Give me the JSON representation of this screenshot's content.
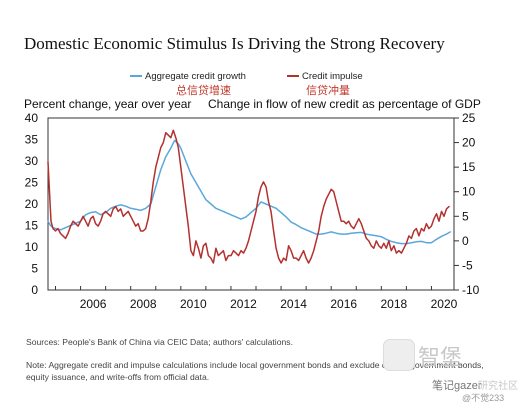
{
  "chart_data": {
    "type": "line",
    "title": "Domestic Economic Stimulus Is Driving the Strong Recovery",
    "legend": [
      {
        "name": "Aggregate credit growth",
        "color": "#5ba7dc"
      },
      {
        "name": "Credit impulse",
        "color": "#b3312f"
      }
    ],
    "legend_cn": [
      "总信贷增速",
      "信贷冲量"
    ],
    "left_axis": {
      "label": "Percent change, year over year",
      "ylim": [
        0,
        40
      ],
      "ticks": [
        0,
        5,
        10,
        15,
        20,
        25,
        30,
        35,
        40
      ]
    },
    "right_axis": {
      "label": "Change in flow of new credit as percentage of GDP",
      "ylim": [
        -10,
        25
      ],
      "ticks": [
        -10,
        -5,
        0,
        5,
        10,
        15,
        20,
        25
      ]
    },
    "x_ticks": [
      "2006",
      "2008",
      "2010",
      "2012",
      "2014",
      "2016",
      "2018",
      "2020"
    ],
    "xlim": [
      2004.7,
      2020.9
    ],
    "series": [
      {
        "name": "Aggregate credit growth",
        "axis": "left",
        "color": "#5ba7dc",
        "points": [
          [
            2004.7,
            16.0
          ],
          [
            2004.8,
            15.0
          ],
          [
            2004.9,
            14.5
          ],
          [
            2005.0,
            14.3
          ],
          [
            2005.2,
            14.0
          ],
          [
            2005.4,
            14.5
          ],
          [
            2005.6,
            15.0
          ],
          [
            2005.8,
            15.5
          ],
          [
            2006.0,
            16.0
          ],
          [
            2006.2,
            17.5
          ],
          [
            2006.4,
            18.0
          ],
          [
            2006.6,
            18.2
          ],
          [
            2006.8,
            17.5
          ],
          [
            2007.0,
            18.0
          ],
          [
            2007.2,
            19.0
          ],
          [
            2007.4,
            19.5
          ],
          [
            2007.6,
            19.8
          ],
          [
            2007.8,
            19.5
          ],
          [
            2008.0,
            19.0
          ],
          [
            2008.2,
            18.8
          ],
          [
            2008.4,
            18.5
          ],
          [
            2008.6,
            19.0
          ],
          [
            2008.8,
            20.0
          ],
          [
            2009.0,
            24.0
          ],
          [
            2009.2,
            28.0
          ],
          [
            2009.4,
            31.0
          ],
          [
            2009.6,
            33.0
          ],
          [
            2009.75,
            34.8
          ],
          [
            2009.9,
            34.0
          ],
          [
            2010.0,
            33.0
          ],
          [
            2010.2,
            30.0
          ],
          [
            2010.4,
            27.0
          ],
          [
            2010.6,
            25.0
          ],
          [
            2010.8,
            23.0
          ],
          [
            2011.0,
            21.0
          ],
          [
            2011.2,
            20.0
          ],
          [
            2011.4,
            19.0
          ],
          [
            2011.6,
            18.5
          ],
          [
            2011.8,
            18.0
          ],
          [
            2012.0,
            17.5
          ],
          [
            2012.2,
            17.0
          ],
          [
            2012.4,
            16.5
          ],
          [
            2012.6,
            17.0
          ],
          [
            2012.8,
            18.0
          ],
          [
            2013.0,
            19.0
          ],
          [
            2013.2,
            20.5
          ],
          [
            2013.4,
            20.0
          ],
          [
            2013.6,
            19.5
          ],
          [
            2013.8,
            19.0
          ],
          [
            2014.0,
            18.0
          ],
          [
            2014.2,
            17.0
          ],
          [
            2014.4,
            15.8
          ],
          [
            2014.6,
            15.2
          ],
          [
            2014.8,
            14.5
          ],
          [
            2015.0,
            14.0
          ],
          [
            2015.2,
            13.5
          ],
          [
            2015.4,
            13.0
          ],
          [
            2015.6,
            13.0
          ],
          [
            2015.8,
            13.2
          ],
          [
            2016.0,
            13.5
          ],
          [
            2016.2,
            13.2
          ],
          [
            2016.4,
            13.0
          ],
          [
            2016.6,
            13.0
          ],
          [
            2016.8,
            13.2
          ],
          [
            2017.0,
            13.3
          ],
          [
            2017.2,
            13.4
          ],
          [
            2017.4,
            13.0
          ],
          [
            2017.6,
            12.8
          ],
          [
            2017.8,
            12.6
          ],
          [
            2018.0,
            12.4
          ],
          [
            2018.2,
            11.8
          ],
          [
            2018.4,
            11.3
          ],
          [
            2018.6,
            11.0
          ],
          [
            2018.8,
            10.8
          ],
          [
            2019.0,
            10.8
          ],
          [
            2019.2,
            11.0
          ],
          [
            2019.4,
            11.2
          ],
          [
            2019.6,
            11.3
          ],
          [
            2019.8,
            11.0
          ],
          [
            2020.0,
            11.0
          ],
          [
            2020.2,
            11.8
          ],
          [
            2020.4,
            12.5
          ],
          [
            2020.6,
            13.0
          ],
          [
            2020.75,
            13.5
          ]
        ]
      },
      {
        "name": "Credit impulse",
        "axis": "right",
        "color": "#b3312f",
        "points": [
          [
            2004.7,
            16.0
          ],
          [
            2004.76,
            10.0
          ],
          [
            2004.82,
            4.0
          ],
          [
            2004.9,
            2.5
          ],
          [
            2005.0,
            2.0
          ],
          [
            2005.1,
            2.5
          ],
          [
            2005.2,
            1.5
          ],
          [
            2005.3,
            1.0
          ],
          [
            2005.4,
            0.5
          ],
          [
            2005.5,
            1.5
          ],
          [
            2005.6,
            3.0
          ],
          [
            2005.7,
            4.0
          ],
          [
            2005.8,
            3.5
          ],
          [
            2005.9,
            3.0
          ],
          [
            2006.0,
            4.0
          ],
          [
            2006.1,
            5.0
          ],
          [
            2006.2,
            4.0
          ],
          [
            2006.3,
            3.0
          ],
          [
            2006.4,
            4.5
          ],
          [
            2006.5,
            5.0
          ],
          [
            2006.6,
            3.5
          ],
          [
            2006.7,
            3.0
          ],
          [
            2006.8,
            4.0
          ],
          [
            2006.9,
            5.5
          ],
          [
            2007.0,
            6.0
          ],
          [
            2007.1,
            5.5
          ],
          [
            2007.2,
            5.0
          ],
          [
            2007.3,
            6.5
          ],
          [
            2007.4,
            7.0
          ],
          [
            2007.5,
            6.0
          ],
          [
            2007.6,
            6.5
          ],
          [
            2007.7,
            5.0
          ],
          [
            2007.8,
            5.5
          ],
          [
            2007.9,
            6.0
          ],
          [
            2008.0,
            5.0
          ],
          [
            2008.1,
            4.0
          ],
          [
            2008.2,
            3.0
          ],
          [
            2008.3,
            3.5
          ],
          [
            2008.4,
            2.0
          ],
          [
            2008.5,
            2.0
          ],
          [
            2008.6,
            2.5
          ],
          [
            2008.7,
            4.5
          ],
          [
            2008.8,
            8.0
          ],
          [
            2008.9,
            12.0
          ],
          [
            2009.0,
            15.0
          ],
          [
            2009.1,
            17.0
          ],
          [
            2009.2,
            19.0
          ],
          [
            2009.3,
            20.0
          ],
          [
            2009.4,
            22.0
          ],
          [
            2009.5,
            21.5
          ],
          [
            2009.6,
            21.0
          ],
          [
            2009.7,
            22.5
          ],
          [
            2009.8,
            21.0
          ],
          [
            2009.9,
            19.0
          ],
          [
            2010.0,
            15.0
          ],
          [
            2010.1,
            11.0
          ],
          [
            2010.2,
            7.0
          ],
          [
            2010.3,
            3.0
          ],
          [
            2010.4,
            -2.0
          ],
          [
            2010.5,
            -3.0
          ],
          [
            2010.6,
            0.0
          ],
          [
            2010.7,
            -1.5
          ],
          [
            2010.8,
            -3.5
          ],
          [
            2010.9,
            -1.0
          ],
          [
            2011.0,
            -0.5
          ],
          [
            2011.1,
            -3.0
          ],
          [
            2011.2,
            -3.5
          ],
          [
            2011.3,
            -4.5
          ],
          [
            2011.4,
            -1.5
          ],
          [
            2011.5,
            -3.0
          ],
          [
            2011.6,
            -2.5
          ],
          [
            2011.7,
            -2.0
          ],
          [
            2011.8,
            -4.0
          ],
          [
            2011.9,
            -3.0
          ],
          [
            2012.0,
            -3.0
          ],
          [
            2012.1,
            -2.0
          ],
          [
            2012.2,
            -2.5
          ],
          [
            2012.3,
            -3.0
          ],
          [
            2012.4,
            -2.0
          ],
          [
            2012.5,
            -2.5
          ],
          [
            2012.6,
            -1.5
          ],
          [
            2012.7,
            0.0
          ],
          [
            2012.8,
            2.0
          ],
          [
            2012.9,
            4.0
          ],
          [
            2013.0,
            6.0
          ],
          [
            2013.1,
            9.0
          ],
          [
            2013.2,
            11.0
          ],
          [
            2013.3,
            12.0
          ],
          [
            2013.4,
            11.0
          ],
          [
            2013.5,
            8.0
          ],
          [
            2013.6,
            6.0
          ],
          [
            2013.7,
            2.0
          ],
          [
            2013.8,
            -1.5
          ],
          [
            2013.9,
            -3.5
          ],
          [
            2014.0,
            -4.5
          ],
          [
            2014.1,
            -3.5
          ],
          [
            2014.2,
            -4.0
          ],
          [
            2014.3,
            -1.0
          ],
          [
            2014.4,
            -2.0
          ],
          [
            2014.5,
            -3.5
          ],
          [
            2014.6,
            -3.5
          ],
          [
            2014.7,
            -4.0
          ],
          [
            2014.8,
            -3.0
          ],
          [
            2014.9,
            -2.0
          ],
          [
            2015.0,
            -3.5
          ],
          [
            2015.1,
            -4.5
          ],
          [
            2015.2,
            -3.5
          ],
          [
            2015.3,
            -2.0
          ],
          [
            2015.4,
            0.0
          ],
          [
            2015.5,
            2.0
          ],
          [
            2015.6,
            5.0
          ],
          [
            2015.7,
            7.0
          ],
          [
            2015.8,
            8.5
          ],
          [
            2015.9,
            9.5
          ],
          [
            2016.0,
            10.5
          ],
          [
            2016.1,
            10.0
          ],
          [
            2016.2,
            8.0
          ],
          [
            2016.3,
            6.0
          ],
          [
            2016.4,
            4.0
          ],
          [
            2016.5,
            4.0
          ],
          [
            2016.6,
            3.5
          ],
          [
            2016.7,
            4.0
          ],
          [
            2016.8,
            3.0
          ],
          [
            2016.9,
            2.5
          ],
          [
            2017.0,
            3.5
          ],
          [
            2017.1,
            4.5
          ],
          [
            2017.2,
            3.5
          ],
          [
            2017.3,
            2.0
          ],
          [
            2017.4,
            0.5
          ],
          [
            2017.5,
            0.0
          ],
          [
            2017.6,
            -1.0
          ],
          [
            2017.7,
            -1.5
          ],
          [
            2017.8,
            0.0
          ],
          [
            2017.9,
            -1.0
          ],
          [
            2018.0,
            -1.5
          ],
          [
            2018.1,
            -0.5
          ],
          [
            2018.2,
            -1.5
          ],
          [
            2018.3,
            0.0
          ],
          [
            2018.4,
            -2.0
          ],
          [
            2018.5,
            -1.0
          ],
          [
            2018.6,
            -2.5
          ],
          [
            2018.7,
            -2.0
          ],
          [
            2018.8,
            -2.5
          ],
          [
            2018.9,
            -1.5
          ],
          [
            2019.0,
            -0.5
          ],
          [
            2019.1,
            1.0
          ],
          [
            2019.2,
            0.5
          ],
          [
            2019.3,
            2.0
          ],
          [
            2019.4,
            2.5
          ],
          [
            2019.5,
            1.0
          ],
          [
            2019.6,
            2.5
          ],
          [
            2019.7,
            2.0
          ],
          [
            2019.8,
            3.5
          ],
          [
            2019.9,
            2.5
          ],
          [
            2020.0,
            3.0
          ],
          [
            2020.1,
            4.5
          ],
          [
            2020.2,
            5.5
          ],
          [
            2020.3,
            4.0
          ],
          [
            2020.4,
            6.0
          ],
          [
            2020.5,
            5.0
          ],
          [
            2020.6,
            6.5
          ],
          [
            2020.7,
            7.0
          ]
        ]
      }
    ],
    "grid": false
  },
  "footnotes": {
    "sources": "Sources: People's Bank of China via CEIC Data; authors' calculations.",
    "note": "Note: Aggregate credit and impulse calculations include local government bonds and exclude central government bonds, equity issuance, and write-offs from official data."
  },
  "watermarks": {
    "brand": "智堡",
    "account": "笔记gazer",
    "community": "研究社区",
    "handle": "@不觉233"
  }
}
